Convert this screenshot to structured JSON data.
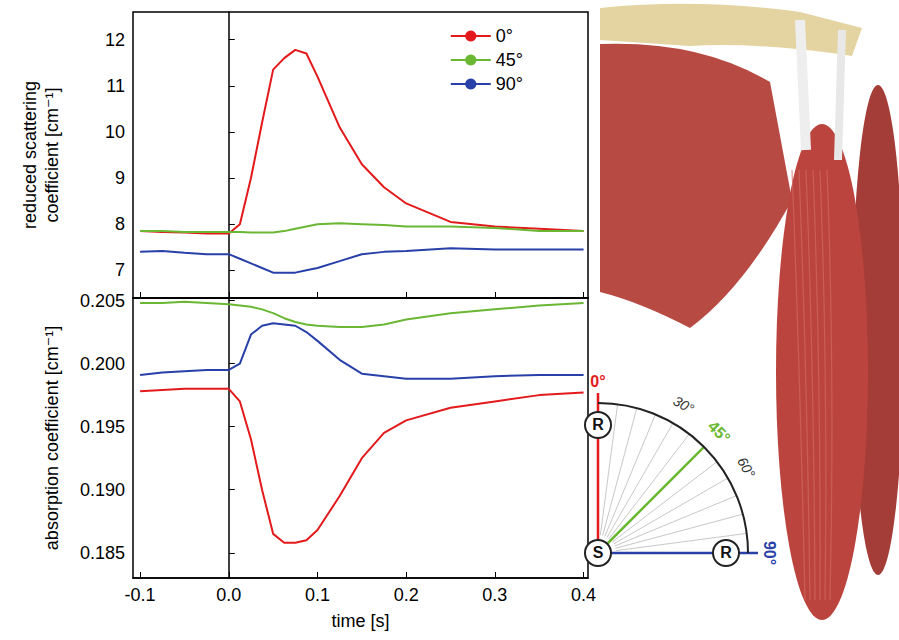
{
  "chart_data": [
    {
      "type": "line",
      "ylabel": "reduced scattering coefficient [cm⁻¹]",
      "x": [
        -0.1,
        -0.075,
        -0.05,
        -0.025,
        0,
        0.0125,
        0.025,
        0.0375,
        0.05,
        0.0625,
        0.075,
        0.0875,
        0.1,
        0.125,
        0.15,
        0.175,
        0.2,
        0.25,
        0.3,
        0.35,
        0.4
      ],
      "series": [
        {
          "name": "0°",
          "color": "#e31a1c",
          "values": [
            7.85,
            7.83,
            7.82,
            7.8,
            7.8,
            8.0,
            9.0,
            10.2,
            11.35,
            11.6,
            11.78,
            11.7,
            11.2,
            10.1,
            9.3,
            8.8,
            8.45,
            8.05,
            7.95,
            7.9,
            7.85
          ]
        },
        {
          "name": "45°",
          "color": "#6ab734",
          "values": [
            7.85,
            7.85,
            7.83,
            7.83,
            7.83,
            7.83,
            7.82,
            7.82,
            7.82,
            7.85,
            7.9,
            7.95,
            8.0,
            8.02,
            8.0,
            7.98,
            7.95,
            7.95,
            7.92,
            7.85,
            7.85
          ]
        },
        {
          "name": "90°",
          "color": "#2840a8",
          "values": [
            7.4,
            7.42,
            7.38,
            7.35,
            7.35,
            7.25,
            7.15,
            7.05,
            6.95,
            6.95,
            6.95,
            7.0,
            7.05,
            7.2,
            7.35,
            7.4,
            7.42,
            7.48,
            7.45,
            7.45,
            7.45
          ]
        }
      ],
      "xlim": [
        -0.108,
        0.405
      ],
      "xticks": [
        -0.1,
        {
          "value": 0,
          "label": "0.0"
        },
        0.1,
        0.2,
        0.3,
        0.4
      ],
      "ylim": [
        6.4,
        12.6
      ],
      "yticks": [
        7,
        8,
        9,
        10,
        11,
        12
      ],
      "tick_labels": "y",
      "legend": "upper right",
      "grid": false
    },
    {
      "type": "line",
      "xlabel": "time [s]",
      "ylabel": "absorption coefficient [cm⁻¹]",
      "x": [
        -0.1,
        -0.075,
        -0.05,
        -0.025,
        0,
        0.0125,
        0.025,
        0.0375,
        0.05,
        0.0625,
        0.075,
        0.0875,
        0.1,
        0.125,
        0.15,
        0.175,
        0.2,
        0.25,
        0.3,
        0.35,
        0.4
      ],
      "series": [
        {
          "color": "#e31a1c",
          "values": [
            0.1978,
            0.1979,
            0.198,
            0.198,
            0.198,
            0.197,
            0.194,
            0.19,
            0.1865,
            0.1858,
            0.1858,
            0.186,
            0.1868,
            0.1895,
            0.1925,
            0.1945,
            0.1955,
            0.1965,
            0.197,
            0.1975,
            0.1977
          ]
        },
        {
          "color": "#6ab734",
          "values": [
            0.2048,
            0.2048,
            0.2049,
            0.2048,
            0.2047,
            0.2046,
            0.2045,
            0.2043,
            0.204,
            0.2036,
            0.2033,
            0.2031,
            0.203,
            0.2029,
            0.2029,
            0.2031,
            0.2035,
            0.204,
            0.2043,
            0.2046,
            0.2048
          ]
        },
        {
          "color": "#2840a8",
          "values": [
            0.1991,
            0.1993,
            0.1994,
            0.1995,
            0.1995,
            0.2,
            0.2023,
            0.203,
            0.2032,
            0.2031,
            0.203,
            0.2025,
            0.2018,
            0.2003,
            0.1992,
            0.199,
            0.1988,
            0.1988,
            0.199,
            0.1991,
            0.1991
          ]
        }
      ],
      "xlim": [
        -0.108,
        0.405
      ],
      "xticks": [
        -0.1,
        {
          "value": 0,
          "label": "0.0"
        },
        0.1,
        0.2,
        0.3,
        0.4
      ],
      "ylim": [
        0.183,
        0.2052
      ],
      "yticks": [
        0.185,
        {
          "value": 0.19,
          "label": "0.190"
        },
        0.195,
        {
          "value": 0.2,
          "label": "0.200"
        },
        0.205
      ],
      "grid": false
    }
  ],
  "diagram": {
    "source": "S",
    "receiver": "R",
    "receiver_angles": [
      0,
      90
    ],
    "angles": [
      {
        "value": 0,
        "label": "0°",
        "color": "#e31a1c"
      },
      {
        "value": 30,
        "label": "30°"
      },
      {
        "value": 45,
        "label": "45°",
        "color": "#6ab734"
      },
      {
        "value": 60,
        "label": "60°"
      },
      {
        "value": 90,
        "label": "90°",
        "color": "#2840a8"
      }
    ]
  }
}
